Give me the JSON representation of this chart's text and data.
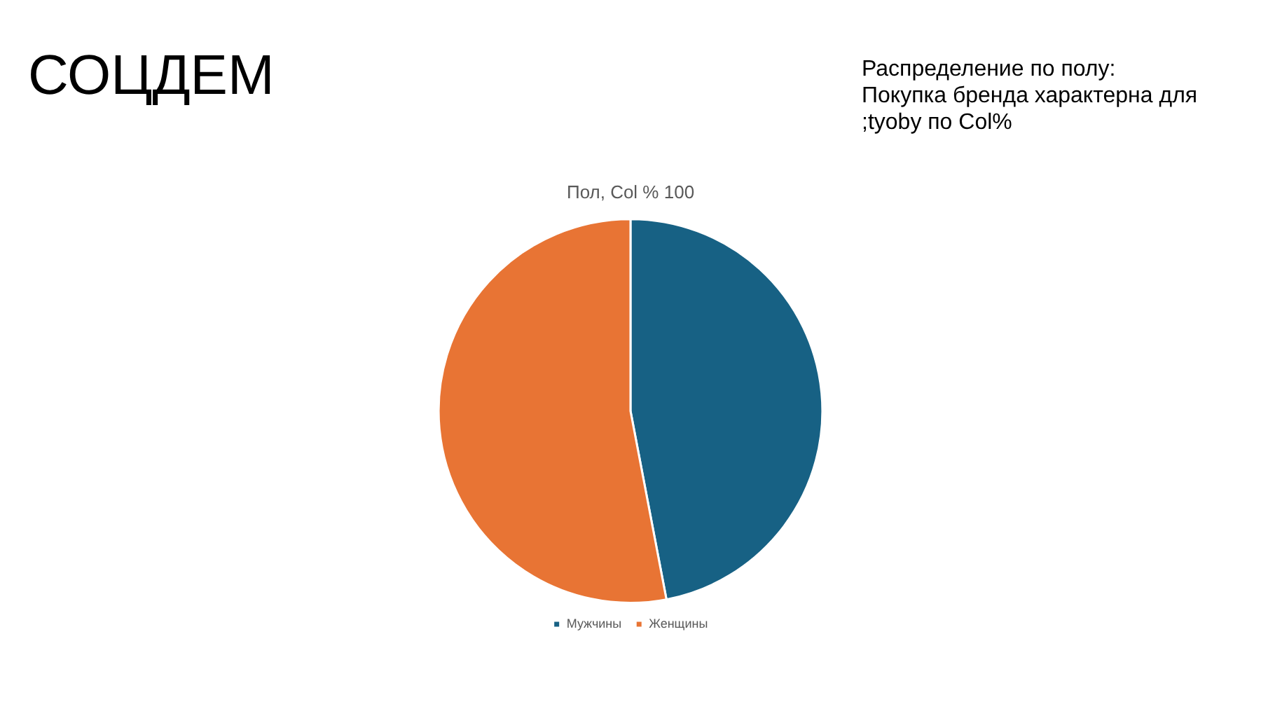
{
  "chart_data": {
    "type": "pie",
    "title": "Пол, Col % 100",
    "annotations": [
      "СОЦДЕМ",
      "Распределение по полу:\nПокупка бренда характерна для\n;tyoby по Col%"
    ],
    "categories": [
      "Мужчины",
      "Женщины"
    ],
    "values": [
      47,
      53
    ],
    "colors": [
      "#176184",
      "#e87434"
    ],
    "legend": "bottom"
  }
}
